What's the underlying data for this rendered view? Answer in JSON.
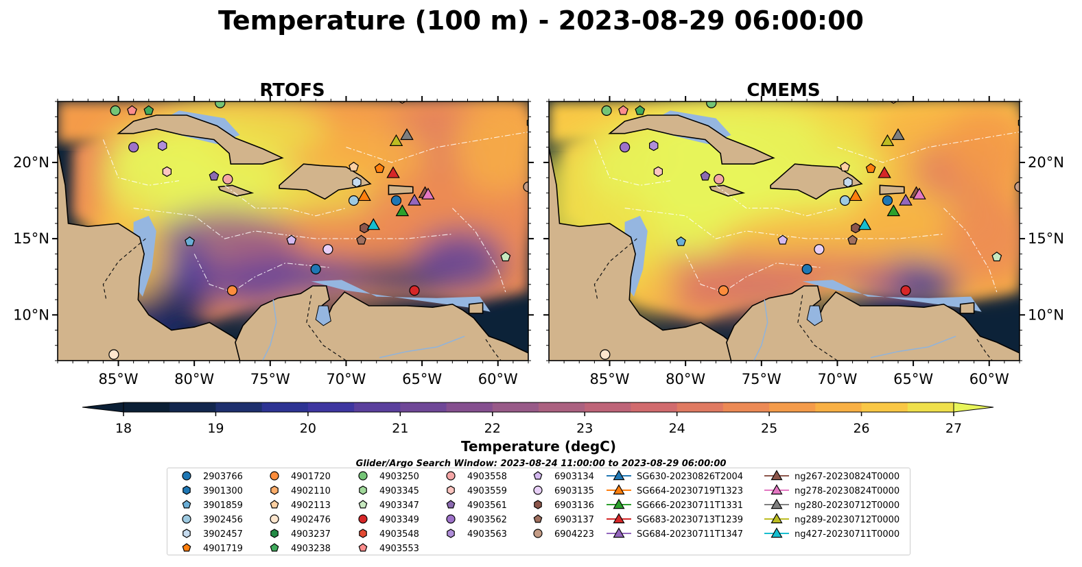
{
  "title": "Temperature (100 m) - 2023-08-29 06:00:00",
  "panels": [
    {
      "title": "RTOFS",
      "surface": "rtofs"
    },
    {
      "title": "CMEMS",
      "surface": "cmems"
    }
  ],
  "colorbar": {
    "label": "Temperature (degC)",
    "min": 18,
    "max": 27,
    "ticks": [
      "18",
      "19",
      "20",
      "21",
      "22",
      "23",
      "24",
      "25",
      "26",
      "27"
    ],
    "colors": [
      "#0b1f35",
      "#12264d",
      "#1e2f6e",
      "#2d3393",
      "#3e36a0",
      "#5a3f9c",
      "#6f4797",
      "#854f8f",
      "#985a88",
      "#ab6180",
      "#be6478",
      "#d16b6e",
      "#e07a62",
      "#ec8a55",
      "#f49b4a",
      "#f8b044",
      "#f9c745",
      "#efe04b",
      "#e8f55a"
    ]
  },
  "search_window": "Glider/Argo Search Window: 2023-08-24 11:00:00 to 2023-08-29 06:00:00",
  "map": {
    "lon_range": [
      -89,
      -58
    ],
    "lat_range": [
      7,
      24
    ],
    "x_ticks": [
      "85°W",
      "80°W",
      "75°W",
      "70°W",
      "65°W",
      "60°W"
    ],
    "y_ticks": [
      "20°N",
      "15°N",
      "10°N"
    ],
    "land_color": "#d2b48c",
    "shelf_color": "#95b6e0",
    "deep_color": "#0c2238"
  },
  "chart_data": {
    "type": "scatter",
    "x_label": "",
    "y_label": "",
    "series": [
      {
        "name": "2903766",
        "marker": "o",
        "color": "#1f77b4",
        "lon": -72.0,
        "lat": 13.0
      },
      {
        "name": "3901300",
        "marker": "h",
        "color": "#1f77b4",
        "lon": -75.6,
        "lat": 24.6
      },
      {
        "name": "3901859",
        "marker": "p",
        "color": "#6baed6",
        "lon": -80.3,
        "lat": 14.8
      },
      {
        "name": "3902456",
        "marker": "o",
        "color": "#9ecae1",
        "lon": -69.5,
        "lat": 17.5
      },
      {
        "name": "3902457",
        "marker": "h",
        "color": "#c6dbef",
        "lon": -69.3,
        "lat": 18.7
      },
      {
        "name": "4901719",
        "marker": "p",
        "color": "#ff7f0e",
        "lon": -67.8,
        "lat": 19.6
      },
      {
        "name": "4901720",
        "marker": "o",
        "color": "#fd8d3c",
        "lon": -77.5,
        "lat": 11.6
      },
      {
        "name": "4902110",
        "marker": "h",
        "color": "#fdae6b",
        "lon": -66.3,
        "lat": 24.2
      },
      {
        "name": "4902113",
        "marker": "p",
        "color": "#fdd0a2",
        "lon": -69.5,
        "lat": 19.7
      },
      {
        "name": "4902476",
        "marker": "o",
        "color": "#fee6ce",
        "lon": -85.3,
        "lat": 7.4
      },
      {
        "name": "4903237",
        "marker": "h",
        "color": "#238b45",
        "lon": -79.0,
        "lat": 25.0
      },
      {
        "name": "4903238",
        "marker": "p",
        "color": "#41ab5d",
        "lon": -83.0,
        "lat": 23.4
      },
      {
        "name": "4903250",
        "marker": "o",
        "color": "#74c476",
        "lon": -85.2,
        "lat": 23.4
      },
      {
        "name": "4903345",
        "marker": "h",
        "color": "#a1d99b",
        "lon": -57.8,
        "lat": 22.6
      },
      {
        "name": "4903347",
        "marker": "p",
        "color": "#c7e9c0",
        "lon": -59.5,
        "lat": 13.8
      },
      {
        "name": "4903349",
        "marker": "o",
        "color": "#d62728",
        "lon": -65.5,
        "lat": 11.6
      },
      {
        "name": "4903548",
        "marker": "h",
        "color": "#e34a33",
        "lon": -64.8,
        "lat": 24.9
      },
      {
        "name": "4903553",
        "marker": "p",
        "color": "#fc8d8d",
        "lon": -84.1,
        "lat": 23.4
      },
      {
        "name": "4903558",
        "marker": "o",
        "color": "#f4a6a6",
        "lon": -77.8,
        "lat": 18.9
      },
      {
        "name": "4903559",
        "marker": "h",
        "color": "#fcc5c0",
        "lon": -81.8,
        "lat": 19.4
      },
      {
        "name": "4903561",
        "marker": "p",
        "color": "#8c6bb1",
        "lon": -78.7,
        "lat": 19.1
      },
      {
        "name": "4903562",
        "marker": "o",
        "color": "#9e72c9",
        "lon": -84.0,
        "lat": 21.0
      },
      {
        "name": "4903563",
        "marker": "h",
        "color": "#b08ed9",
        "lon": -82.1,
        "lat": 21.1
      },
      {
        "name": "6903134",
        "marker": "p",
        "color": "#d4b9f0",
        "lon": -73.6,
        "lat": 14.9
      },
      {
        "name": "6903135",
        "marker": "o",
        "color": "#e8d0f7",
        "lon": -71.2,
        "lat": 14.3
      },
      {
        "name": "6903136",
        "marker": "h",
        "color": "#8c564b",
        "lon": -68.8,
        "lat": 15.7
      },
      {
        "name": "6903137",
        "marker": "p",
        "color": "#a0705f",
        "lon": -69.0,
        "lat": 14.9
      },
      {
        "name": "6904223",
        "marker": "o",
        "color": "#c49c86",
        "lon": -58.0,
        "lat": 18.4
      },
      {
        "name": "SG630-20230826T2004",
        "marker": "^",
        "color": "#1f77b4",
        "lon": -66.9,
        "lat": 25.6
      },
      {
        "name": "SG664-20230719T1323",
        "marker": "^",
        "color": "#ff7f0e",
        "lon": -68.8,
        "lat": 17.8
      },
      {
        "name": "SG666-20230711T1331",
        "marker": "^",
        "color": "#2ca02c",
        "lon": -66.3,
        "lat": 16.8
      },
      {
        "name": "SG683-20230713T1239",
        "marker": "^",
        "color": "#d62728",
        "lon": -66.9,
        "lat": 19.3
      },
      {
        "name": "SG684-20230711T1347",
        "marker": "^",
        "color": "#9467bd",
        "lon": -65.5,
        "lat": 17.5
      },
      {
        "name": "ng267-20230824T0000",
        "marker": "^",
        "color": "#8c564b",
        "lon": -64.8,
        "lat": 18.0
      },
      {
        "name": "ng278-20230824T0000",
        "marker": "^",
        "color": "#e377c2",
        "lon": -64.6,
        "lat": 17.9
      },
      {
        "name": "ng280-20230712T0000",
        "marker": "^",
        "color": "#7f7f7f",
        "lon": -66.0,
        "lat": 21.8
      },
      {
        "name": "ng289-20230712T0000",
        "marker": "^",
        "color": "#bcbd22",
        "lon": -66.7,
        "lat": 21.4
      },
      {
        "name": "ng427-20230711T0000",
        "marker": "^",
        "color": "#17becf",
        "lon": -68.2,
        "lat": 15.9
      }
    ],
    "extra_points": [
      {
        "marker": "o",
        "color": "#74c476",
        "lon": -78.3,
        "lat": 23.9
      },
      {
        "marker": "o",
        "color": "#1f77b4",
        "lon": -66.7,
        "lat": 17.5
      }
    ]
  }
}
